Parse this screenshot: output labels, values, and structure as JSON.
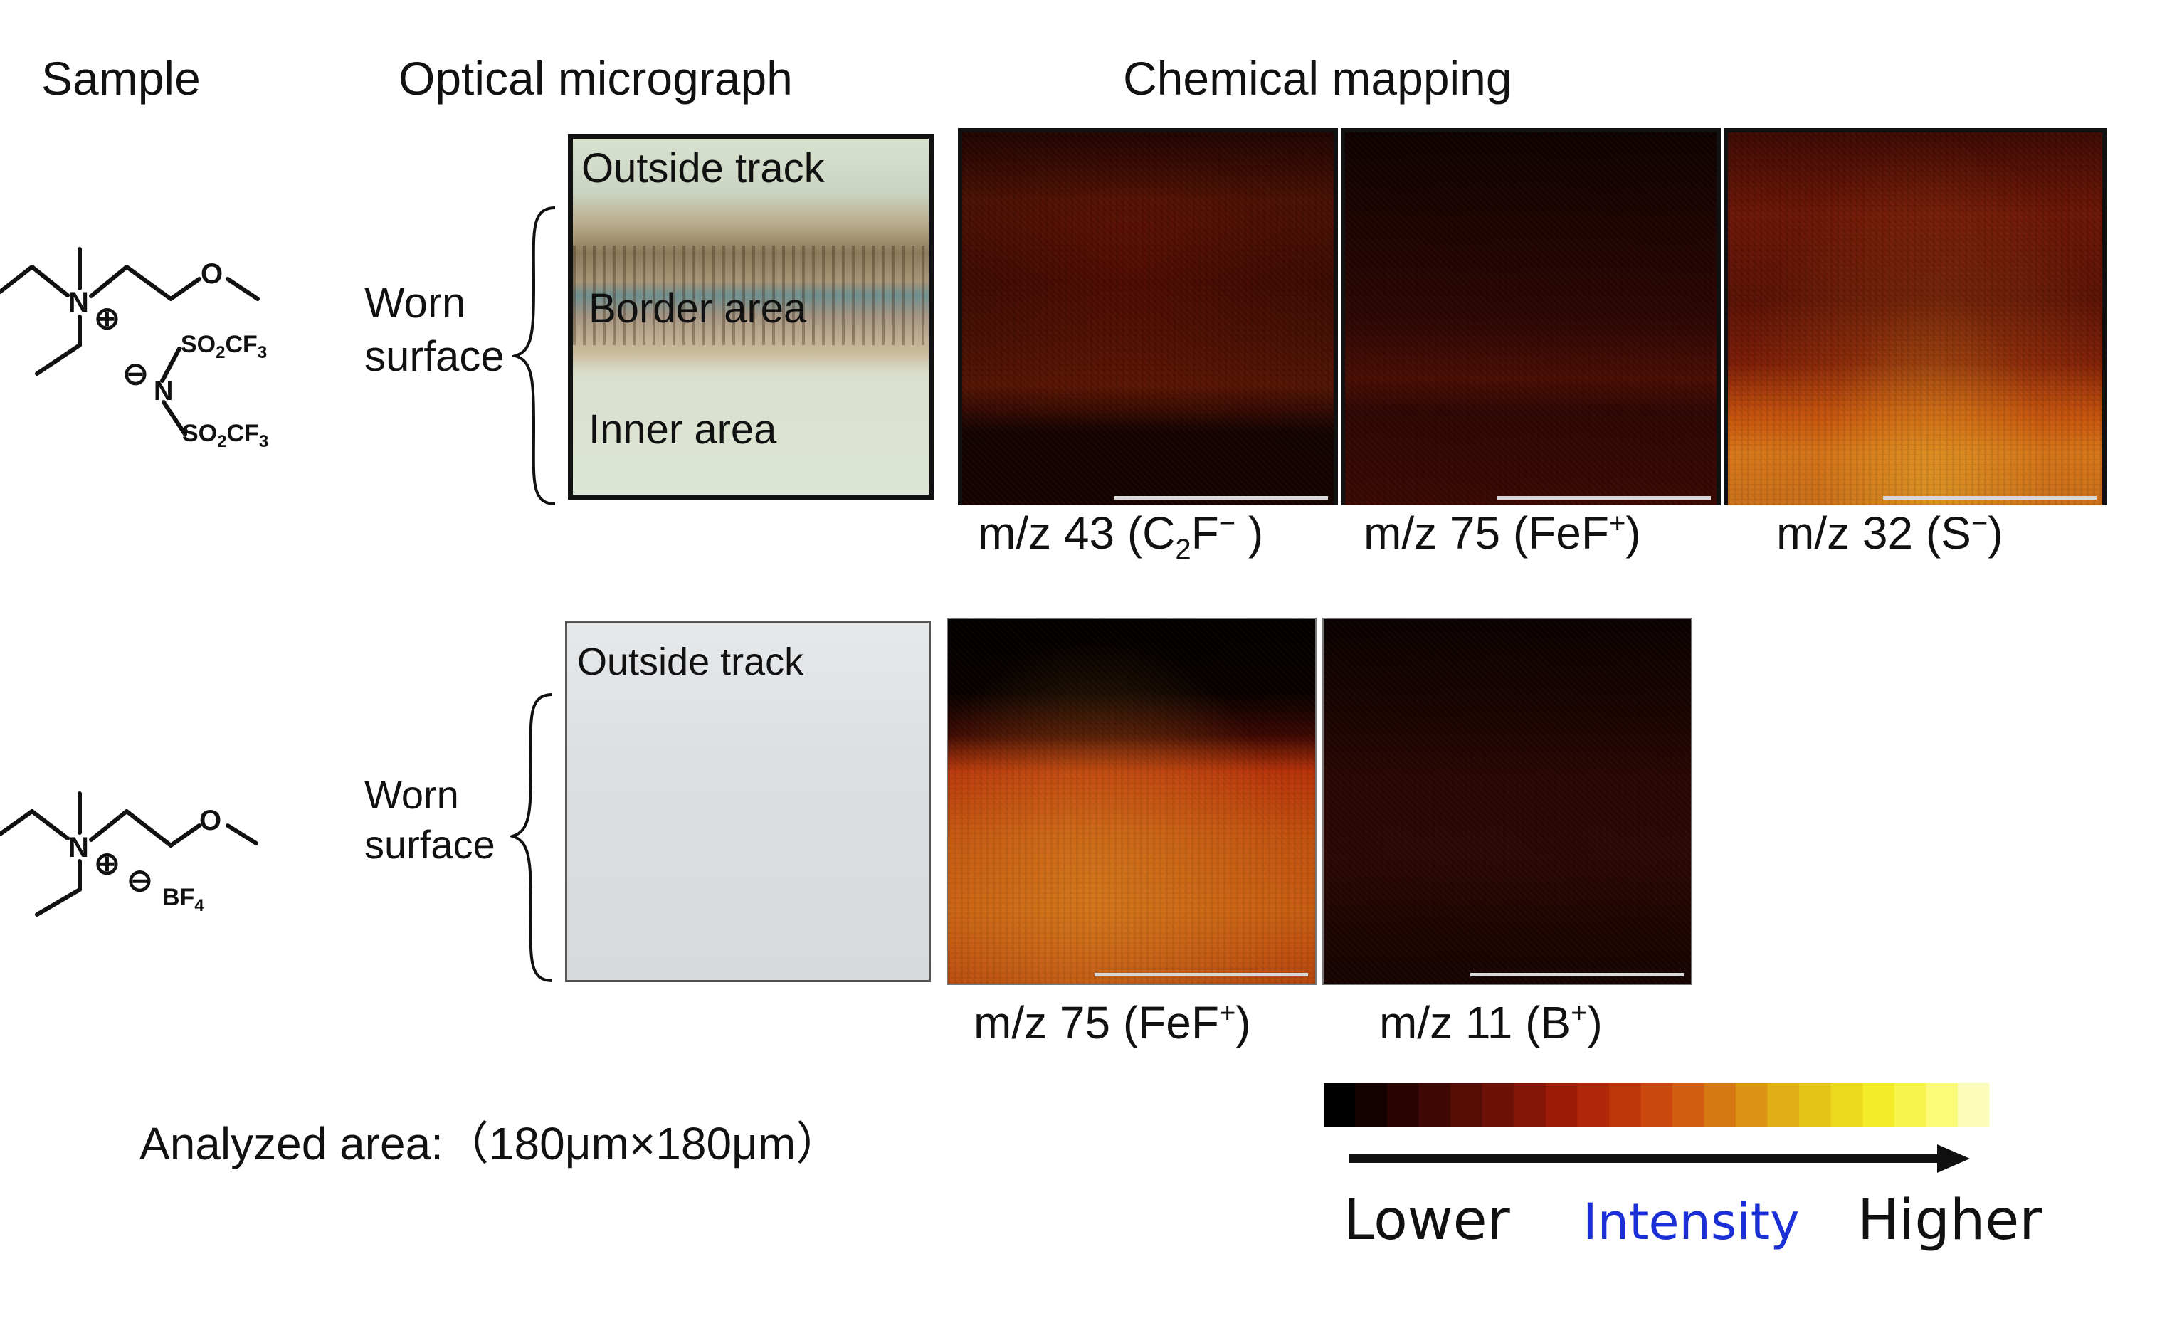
{
  "headers": {
    "sample": "Sample",
    "optical": "Optical micrograph",
    "chemical": "Chemical mapping"
  },
  "row1": {
    "worn_line1": "Worn",
    "worn_line2": "surface",
    "optical_labels": {
      "outside": "Outside track",
      "border": "Border area",
      "inner": "Inner area"
    },
    "maps": [
      {
        "caption_pre": "m/z 43 (C",
        "caption_sub": "2",
        "caption_mid": "F",
        "caption_sup": "−",
        "caption_post": " )"
      },
      {
        "caption_pre": "m/z 75 (FeF",
        "caption_sup": "+",
        "caption_post": ")"
      },
      {
        "caption_pre": "m/z 32 (S",
        "caption_sup": "−",
        "caption_post": ")"
      }
    ],
    "molecule": {
      "n": "N",
      "o": "O",
      "plus": "⊕",
      "minus": "⊖",
      "anion_n": "N",
      "so2cf3_a": "SO",
      "so2cf3_b": "2",
      "so2cf3_c": "CF",
      "so2cf3_d": "3"
    }
  },
  "row2": {
    "worn_line1": "Worn",
    "worn_line2": "surface",
    "optical_labels": {
      "outside": "Outside track"
    },
    "maps": [
      {
        "caption_pre": "m/z 75 (FeF",
        "caption_sup": "+",
        "caption_post": ")"
      },
      {
        "caption_pre": "m/z 11 (B",
        "caption_sup": "+",
        "caption_post": ")"
      }
    ],
    "molecule": {
      "n": "N",
      "o": "O",
      "plus": "⊕",
      "minus": "⊖",
      "bf4_a": "BF",
      "bf4_b": "4"
    }
  },
  "analyzed_area": "Analyzed area:（180μm×180μm）",
  "legend": {
    "lower": "Lower",
    "intensity": "Intensity",
    "higher": "Higher",
    "intensity_color": "#1a2fd6",
    "gradient_colors": [
      "#000000",
      "#2a0503",
      "#5a0d05",
      "#8c1606",
      "#b82a08",
      "#cf5010",
      "#d98a14",
      "#e3be18",
      "#f2ea20",
      "#fbfb70",
      "#ffffff"
    ]
  }
}
